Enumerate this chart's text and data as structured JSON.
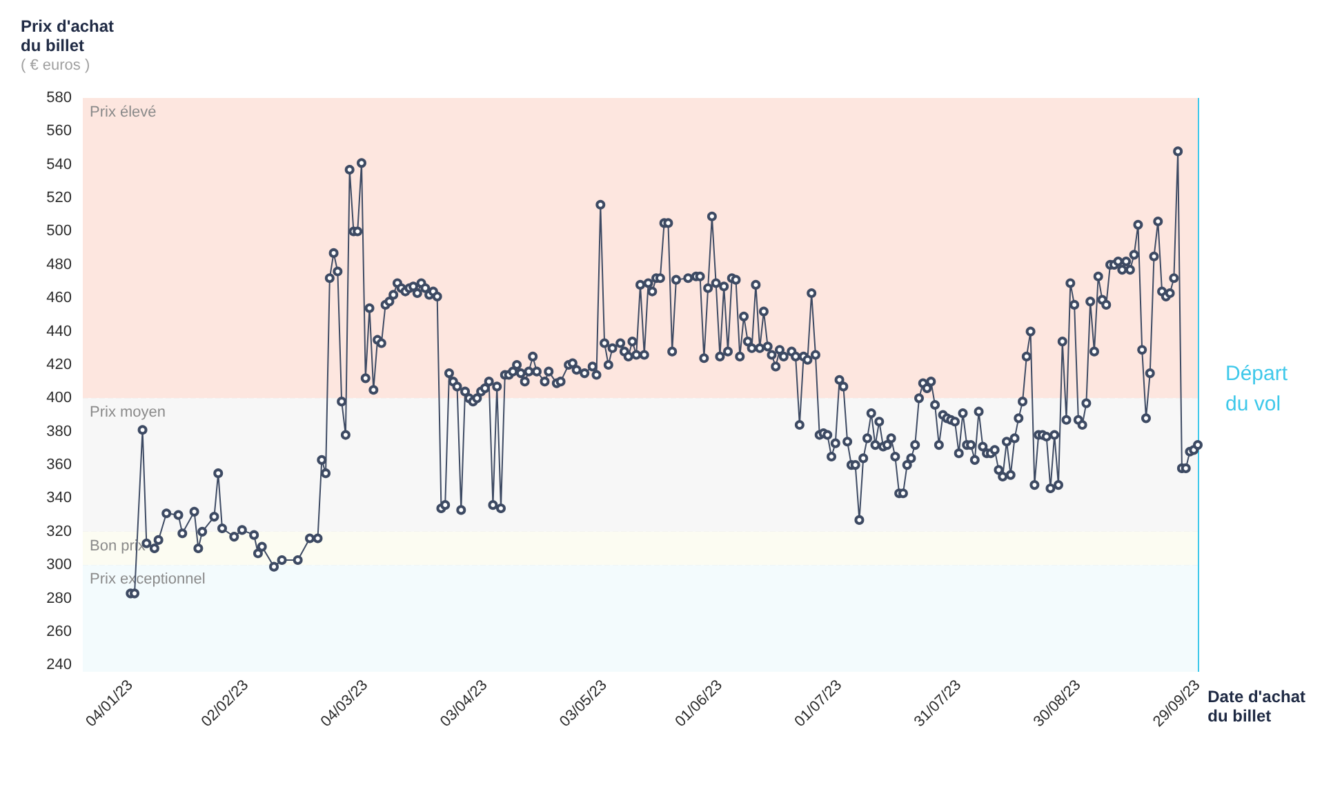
{
  "chart_data": {
    "type": "line",
    "ylabel": "Prix d'achat\ndu billet",
    "xlabel": "Date d'achat\ndu billet",
    "annotations": [
      "( € euros )"
    ],
    "xlim": [
      "2022-12-23",
      "2023-09-29"
    ],
    "xticks": [
      {
        "value": "2023-01-04",
        "label": "04/01/23"
      },
      {
        "value": "2023-02-02",
        "label": "02/02/23"
      },
      {
        "value": "2023-03-04",
        "label": "04/03/23"
      },
      {
        "value": "2023-04-03",
        "label": "03/04/23"
      },
      {
        "value": "2023-05-03",
        "label": "03/05/23"
      },
      {
        "value": "2023-06-01",
        "label": "01/06/23"
      },
      {
        "value": "2023-07-01",
        "label": "01/07/23"
      },
      {
        "value": "2023-07-31",
        "label": "31/07/23"
      },
      {
        "value": "2023-08-30",
        "label": "30/08/23"
      },
      {
        "value": "2023-09-29",
        "label": "29/09/23"
      }
    ],
    "ylim": [
      236,
      580
    ],
    "yticks": [
      240,
      260,
      280,
      300,
      320,
      340,
      360,
      380,
      400,
      420,
      440,
      460,
      480,
      500,
      520,
      540,
      560,
      580
    ],
    "grid": true,
    "marker": "circle",
    "line_style": "solid",
    "bands": [
      {
        "axis": "y",
        "from": 400,
        "to": 580,
        "label": "Prix élevé",
        "color": "#fde6df"
      },
      {
        "axis": "y",
        "from": 320,
        "to": 400,
        "label": "Prix moyen",
        "color": "#f7f7f7"
      },
      {
        "axis": "y",
        "from": 300,
        "to": 320,
        "label": "Bon prix",
        "color": "#fcfcf2"
      },
      {
        "axis": "y",
        "from": 236,
        "to": 300,
        "label": "Prix exceptionnel",
        "color": "#f3fbfd"
      }
    ],
    "ref_lines": [
      {
        "axis": "x",
        "value": "2023-09-29",
        "label": "Départ\ndu vol",
        "color": "#3ec8ea"
      }
    ],
    "series": [
      {
        "color": "#3d4a63",
        "x": [
          "2023-01-04",
          "2023-01-05",
          "2023-01-07",
          "2023-01-08",
          "2023-01-10",
          "2023-01-11",
          "2023-01-13",
          "2023-01-16",
          "2023-01-17",
          "2023-01-20",
          "2023-01-21",
          "2023-01-22",
          "2023-01-25",
          "2023-01-26",
          "2023-01-27",
          "2023-01-30",
          "2023-02-01",
          "2023-02-04",
          "2023-02-05",
          "2023-02-06",
          "2023-02-09",
          "2023-02-11",
          "2023-02-15",
          "2023-02-18",
          "2023-02-20",
          "2023-02-21",
          "2023-02-22",
          "2023-02-23",
          "2023-02-24",
          "2023-02-25",
          "2023-02-26",
          "2023-02-27",
          "2023-02-28",
          "2023-03-01",
          "2023-03-02",
          "2023-03-03",
          "2023-03-04",
          "2023-03-05",
          "2023-03-06",
          "2023-03-07",
          "2023-03-08",
          "2023-03-09",
          "2023-03-10",
          "2023-03-11",
          "2023-03-12",
          "2023-03-13",
          "2023-03-14",
          "2023-03-15",
          "2023-03-16",
          "2023-03-17",
          "2023-03-18",
          "2023-03-19",
          "2023-03-20",
          "2023-03-21",
          "2023-03-22",
          "2023-03-23",
          "2023-03-24",
          "2023-03-25",
          "2023-03-26",
          "2023-03-27",
          "2023-03-28",
          "2023-03-29",
          "2023-03-30",
          "2023-03-31",
          "2023-04-01",
          "2023-04-02",
          "2023-04-03",
          "2023-04-04",
          "2023-04-05",
          "2023-04-06",
          "2023-04-07",
          "2023-04-08",
          "2023-04-09",
          "2023-04-10",
          "2023-04-11",
          "2023-04-12",
          "2023-04-13",
          "2023-04-14",
          "2023-04-15",
          "2023-04-16",
          "2023-04-18",
          "2023-04-19",
          "2023-04-21",
          "2023-04-22",
          "2023-04-24",
          "2023-04-25",
          "2023-04-26",
          "2023-04-28",
          "2023-04-30",
          "2023-05-01",
          "2023-05-02",
          "2023-05-03",
          "2023-05-04",
          "2023-05-05",
          "2023-05-07",
          "2023-05-08",
          "2023-05-09",
          "2023-05-10",
          "2023-05-11",
          "2023-05-12",
          "2023-05-13",
          "2023-05-14",
          "2023-05-15",
          "2023-05-16",
          "2023-05-17",
          "2023-05-18",
          "2023-05-19",
          "2023-05-20",
          "2023-05-21",
          "2023-05-24",
          "2023-05-26",
          "2023-05-27",
          "2023-05-28",
          "2023-05-29",
          "2023-05-30",
          "2023-05-31",
          "2023-06-01",
          "2023-06-02",
          "2023-06-03",
          "2023-06-04",
          "2023-06-05",
          "2023-06-06",
          "2023-06-07",
          "2023-06-08",
          "2023-06-09",
          "2023-06-10",
          "2023-06-11",
          "2023-06-12",
          "2023-06-13",
          "2023-06-14",
          "2023-06-15",
          "2023-06-16",
          "2023-06-17",
          "2023-06-19",
          "2023-06-20",
          "2023-06-21",
          "2023-06-22",
          "2023-06-23",
          "2023-06-24",
          "2023-06-25",
          "2023-06-26",
          "2023-06-27",
          "2023-06-28",
          "2023-06-29",
          "2023-06-30",
          "2023-07-01",
          "2023-07-02",
          "2023-07-03",
          "2023-07-04",
          "2023-07-05",
          "2023-07-06",
          "2023-07-07",
          "2023-07-08",
          "2023-07-09",
          "2023-07-10",
          "2023-07-11",
          "2023-07-12",
          "2023-07-13",
          "2023-07-14",
          "2023-07-15",
          "2023-07-16",
          "2023-07-17",
          "2023-07-18",
          "2023-07-19",
          "2023-07-20",
          "2023-07-21",
          "2023-07-22",
          "2023-07-23",
          "2023-07-24",
          "2023-07-25",
          "2023-07-26",
          "2023-07-27",
          "2023-07-28",
          "2023-07-29",
          "2023-07-30",
          "2023-07-31",
          "2023-08-01",
          "2023-08-02",
          "2023-08-03",
          "2023-08-04",
          "2023-08-05",
          "2023-08-06",
          "2023-08-07",
          "2023-08-08",
          "2023-08-09",
          "2023-08-10",
          "2023-08-11",
          "2023-08-12",
          "2023-08-13",
          "2023-08-14",
          "2023-08-15",
          "2023-08-16",
          "2023-08-17",
          "2023-08-18",
          "2023-08-19",
          "2023-08-20",
          "2023-08-21",
          "2023-08-22",
          "2023-08-23",
          "2023-08-24",
          "2023-08-25",
          "2023-08-26",
          "2023-08-27",
          "2023-08-28",
          "2023-08-29",
          "2023-08-30",
          "2023-08-31",
          "2023-09-01",
          "2023-09-02",
          "2023-09-03",
          "2023-09-04",
          "2023-09-05",
          "2023-09-06",
          "2023-09-07",
          "2023-09-08",
          "2023-09-09",
          "2023-09-10",
          "2023-09-11",
          "2023-09-12",
          "2023-09-13",
          "2023-09-14",
          "2023-09-15",
          "2023-09-16",
          "2023-09-17",
          "2023-09-18",
          "2023-09-19",
          "2023-09-20",
          "2023-09-21",
          "2023-09-22",
          "2023-09-23",
          "2023-09-24",
          "2023-09-25",
          "2023-09-26",
          "2023-09-27",
          "2023-09-28",
          "2023-09-29"
        ],
        "values": [
          283,
          283,
          381,
          313,
          310,
          315,
          331,
          330,
          319,
          332,
          310,
          320,
          329,
          355,
          322,
          317,
          321,
          318,
          307,
          311,
          299,
          303,
          303,
          316,
          316,
          363,
          355,
          472,
          487,
          476,
          398,
          378,
          537,
          500,
          500,
          541,
          412,
          454,
          405,
          435,
          433,
          456,
          458,
          462,
          469,
          466,
          464,
          466,
          467,
          463,
          469,
          466,
          462,
          464,
          461,
          334,
          336,
          415,
          410,
          407,
          333,
          404,
          400,
          398,
          400,
          404,
          406,
          410,
          336,
          407,
          334,
          414,
          414,
          416,
          420,
          415,
          410,
          416,
          425,
          416,
          410,
          416,
          409,
          410,
          420,
          421,
          417,
          415,
          419,
          414,
          516,
          433,
          420,
          430,
          433,
          428,
          425,
          434,
          426,
          468,
          426,
          469,
          464,
          472,
          472,
          505,
          505,
          428,
          471,
          472,
          473,
          473,
          424,
          466,
          509,
          469,
          425,
          467,
          428,
          472,
          471,
          425,
          449,
          434,
          430,
          468,
          430,
          452,
          431,
          426,
          419,
          429,
          425,
          428,
          425,
          384,
          425,
          423,
          463,
          426,
          378,
          379,
          378,
          365,
          373,
          411,
          407,
          374,
          360,
          360,
          327,
          364,
          376,
          391,
          372,
          386,
          371,
          372,
          376,
          365,
          343,
          343,
          360,
          364,
          372,
          400,
          409,
          406,
          410,
          396,
          372,
          390,
          388,
          387,
          386,
          367,
          391,
          372,
          372,
          363,
          392,
          371,
          367,
          367,
          369,
          357,
          353,
          374,
          354,
          376,
          388,
          398,
          425,
          440,
          348,
          378,
          378,
          377,
          346,
          378,
          348,
          434,
          387,
          469,
          456,
          387,
          384,
          397,
          458,
          428,
          473,
          459,
          456,
          480,
          480,
          482,
          477,
          482,
          477,
          486,
          504,
          429,
          388,
          415,
          485,
          506,
          464,
          461,
          463,
          472,
          548,
          358,
          358,
          368,
          369,
          372
        ]
      }
    ]
  }
}
